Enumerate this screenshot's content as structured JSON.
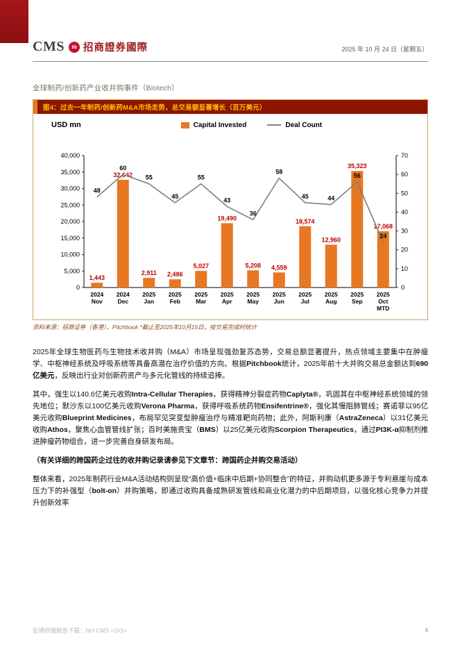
{
  "header": {
    "logo_text": "CMS",
    "logo_cn": "招商證券國際",
    "date": "2025 年 10 月 24 日（星期五）"
  },
  "section_title": "全球制药/创新药产业收并购事件（Biotech）",
  "figure": {
    "title": "图4：过去一年制药/创新药M&A市场走势，总交易额显著增长（百万美元）",
    "unit_label": "USD mn",
    "legend": [
      {
        "label": "Capital Invested",
        "type": "bar",
        "color": "#E87722"
      },
      {
        "label": "Deal Count",
        "type": "line",
        "color": "#7F7F7F"
      }
    ],
    "source": "资料来源：招商证券（香港），Pitchbook *截止至2025年10月15日，按交易完成时统计"
  },
  "chart_data": {
    "type": "bar",
    "title": "图4：过去一年制药/创新药M&A市场走势，总交易额显著增长（百万美元）",
    "categories": [
      "2024\nNov",
      "2024\nDec",
      "2025\nJan",
      "2025\nFeb",
      "2025\nMar",
      "2025\nApr",
      "2025\nMay",
      "2025\nJun",
      "2025\nJul",
      "2025\nAug",
      "2025\nSep",
      "2025\nOct\nMTD"
    ],
    "series": [
      {
        "name": "Capital Invested",
        "type": "bar",
        "axis": "left",
        "color": "#E87722",
        "label_color": "#C00000",
        "values": [
          1443,
          32642,
          2911,
          2486,
          5027,
          19490,
          5208,
          4559,
          18574,
          12960,
          35323,
          17068
        ]
      },
      {
        "name": "Deal Count",
        "type": "line",
        "axis": "right",
        "color": "#7F7F7F",
        "label_color": "#000000",
        "values": [
          48,
          60,
          55,
          45,
          55,
          43,
          36,
          58,
          45,
          44,
          56,
          24
        ]
      }
    ],
    "left_axis": {
      "min": 0,
      "max": 40000,
      "step": 5000,
      "label": "USD mn"
    },
    "right_axis": {
      "min": 0,
      "max": 70,
      "step": 10
    },
    "grid": false,
    "legend_position": "top"
  },
  "paragraphs": [
    {
      "bold": false,
      "segments": [
        {
          "t": "2025年全球生物医药与生物技术收并购（M&A）市场呈现强劲复苏态势，交易总额显著提升，热点领域主要集中在肿瘤学、中枢神经系统及呼吸系统等具备高潜在治疗价值的方向。根据"
        },
        {
          "t": "Pitchbook",
          "b": true
        },
        {
          "t": "统计，2025年前十大并购交易总金额达到"
        },
        {
          "t": "690亿美元",
          "b": true
        },
        {
          "t": "，反映出行业对创新药资产与多元化管线的持续追捧。"
        }
      ]
    },
    {
      "bold": false,
      "segments": [
        {
          "t": "其中，强生以140.6亿美元收购"
        },
        {
          "t": "Intra-Cellular Therapies",
          "b": true
        },
        {
          "t": "，获得精神分裂症药物"
        },
        {
          "t": "Caplyta®",
          "b": true
        },
        {
          "t": "，巩固其在中枢神经系统领域的领先地位；默沙东以100亿美元收购"
        },
        {
          "t": "Verona Pharma",
          "b": true
        },
        {
          "t": "，获得呼吸系统药物"
        },
        {
          "t": "Ensifentrine®",
          "b": true
        },
        {
          "t": "，强化其慢阻肺管线；赛诺菲以95亿美元收购"
        },
        {
          "t": "Blueprint Medicines",
          "b": true
        },
        {
          "t": "，布局罕见突变型肿瘤治疗与精准靶向药物；此外，阿斯利康（"
        },
        {
          "t": "AstraZeneca",
          "b": true
        },
        {
          "t": "）以31亿美元收购"
        },
        {
          "t": "Athos",
          "b": true
        },
        {
          "t": "，聚焦心血管管线扩张；百时美施贵宝（"
        },
        {
          "t": "BMS",
          "b": true
        },
        {
          "t": "）以25亿美元收购"
        },
        {
          "t": "Scorpion Therapeutics",
          "b": true
        },
        {
          "t": "，通过"
        },
        {
          "t": "PI3K-α",
          "b": true
        },
        {
          "t": "抑制剂推进肿瘤药物组合，进一步完善自身研发布局。"
        }
      ]
    },
    {
      "bold": true,
      "segments": [
        {
          "t": "（有关详细的跨国药企过往的收并购记录请参见下文章节：跨国药企并购交易活动）"
        }
      ]
    },
    {
      "bold": false,
      "segments": [
        {
          "t": "整体来看，2025年制药行业M&A活动结构则呈现“高价值+临床中后期+协同整合”的特征，并购动机更多源于专利悬崖与成本压力下的补强型（"
        },
        {
          "t": "bolt-on",
          "b": true
        },
        {
          "t": "）并购策略，即通过收购具备成熟研发管线和商业化潜力的中后期项目，以强化核心竞争力并提升创新效率"
        }
      ]
    }
  ],
  "footer": {
    "left": "彭博终端报告下载：NH CMS <GO>",
    "page": "4"
  }
}
